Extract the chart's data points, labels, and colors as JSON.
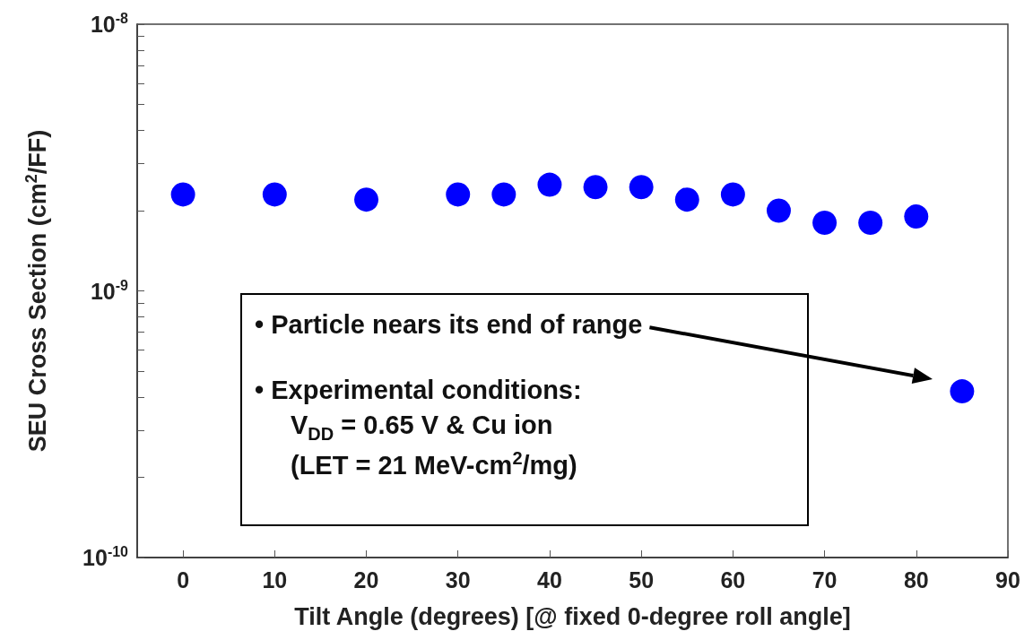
{
  "chart_data": {
    "type": "scatter",
    "xlabel": "Tilt Angle (degrees) [@ fixed 0-degree roll angle]",
    "ylabel": "SEU Cross Section (cm$^{2}$/FF)",
    "x": [
      0,
      10,
      20,
      30,
      35,
      40,
      45,
      50,
      55,
      60,
      65,
      70,
      75,
      80,
      85
    ],
    "series": [
      {
        "color": "#0000ff",
        "values": [
          2.3e-09,
          2.3e-09,
          2.2e-09,
          2.3e-09,
          2.3e-09,
          2.5e-09,
          2.45e-09,
          2.45e-09,
          2.2e-09,
          2.3e-09,
          2e-09,
          1.8e-09,
          1.8e-09,
          1.9e-09,
          4.2e-10
        ]
      }
    ],
    "marker": "circle",
    "log": "y",
    "grid": false,
    "xlim": [
      -5,
      90
    ],
    "xticks": [
      0,
      10,
      20,
      30,
      40,
      50,
      60,
      70,
      80,
      90
    ],
    "ylim": [
      1e-10,
      1e-08
    ],
    "yticks": [
      {
        "value": 1e-10,
        "label": "10$^{-10}$"
      },
      {
        "value": 2e-10,
        "label": null
      },
      {
        "value": 3e-10,
        "label": null
      },
      {
        "value": 4e-10,
        "label": null
      },
      {
        "value": 5e-10,
        "label": null
      },
      {
        "value": 6e-10,
        "label": null
      },
      {
        "value": 7e-10,
        "label": null
      },
      {
        "value": 8e-10,
        "label": null
      },
      {
        "value": 9e-10,
        "label": null
      },
      {
        "value": 1e-09,
        "label": "10$^{-9}$"
      },
      {
        "value": 2e-09,
        "label": null
      },
      {
        "value": 3e-09,
        "label": null
      },
      {
        "value": 4e-09,
        "label": null
      },
      {
        "value": 5e-09,
        "label": null
      },
      {
        "value": 6e-09,
        "label": null
      },
      {
        "value": 7e-09,
        "label": null
      },
      {
        "value": 8e-09,
        "label": null
      },
      {
        "value": 9e-09,
        "label": null
      },
      {
        "value": 1e-08,
        "label": "10$^{-8}$"
      }
    ],
    "annotations": [
      "• Particle nears its end of range",
      "• Experimental conditions:",
      "V$_{DD}$ = 0.65 V & Cu ion",
      "(LET = 21 MeV-cm$^{2}$/mg)"
    ]
  }
}
